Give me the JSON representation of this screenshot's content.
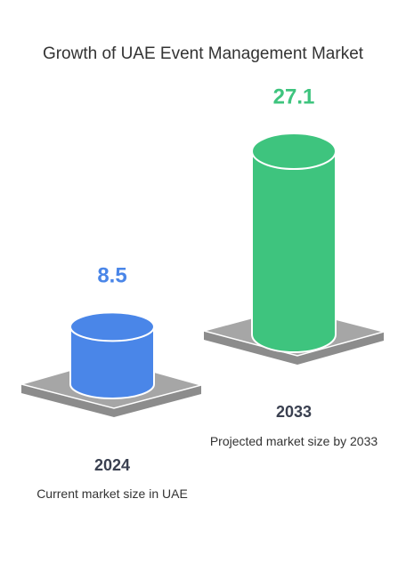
{
  "chart_data": {
    "type": "cylinder",
    "title": "Growth of UAE Event Management Market",
    "categories": [
      "2024",
      "2033"
    ],
    "descriptions": [
      "Current market size in UAE",
      "Projected market size by 2033"
    ],
    "values": [
      8.5,
      27.1
    ],
    "colors": [
      "#4a86e8",
      "#3ec47e"
    ]
  }
}
